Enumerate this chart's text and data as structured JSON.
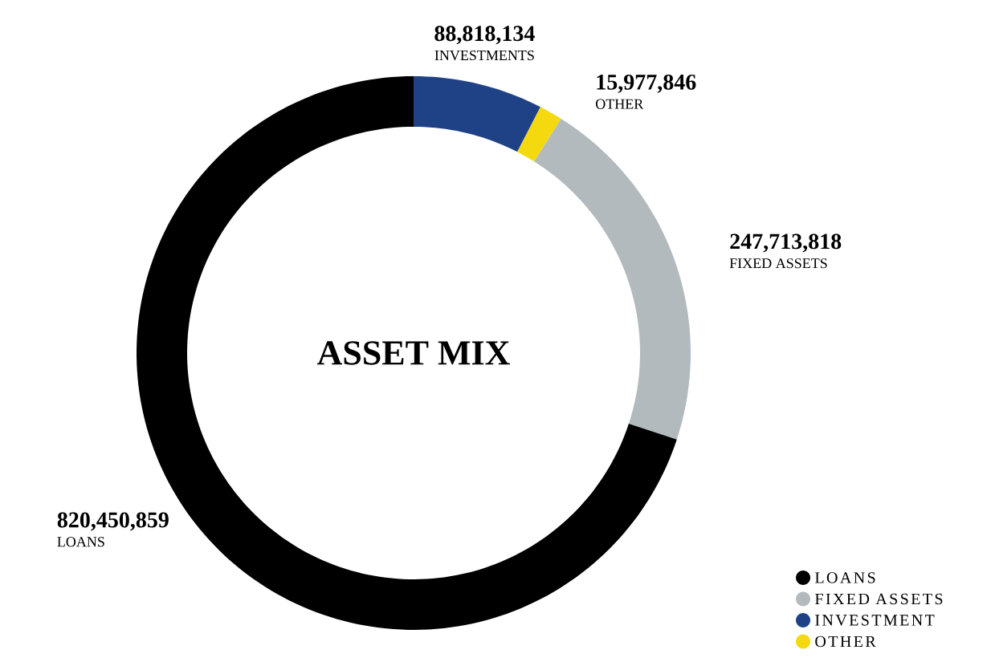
{
  "chart_data": {
    "type": "donut",
    "title": "ASSET MIX",
    "categories": [
      "INVESTMENTS",
      "OTHER",
      "FIXED ASSETS",
      "LOANS"
    ],
    "values": [
      88818134,
      15977846,
      247713818,
      820450859
    ],
    "colors": [
      "#1f4286",
      "#f5d90f",
      "#b3babd",
      "#000000"
    ],
    "value_labels": [
      "88,818,134",
      "15,977,846",
      "247,713,818",
      "820,450,859"
    ],
    "annotations": [
      "LOANS",
      "FIXED ASSETS",
      "INVESTMENT",
      "OTHER"
    ]
  }
}
